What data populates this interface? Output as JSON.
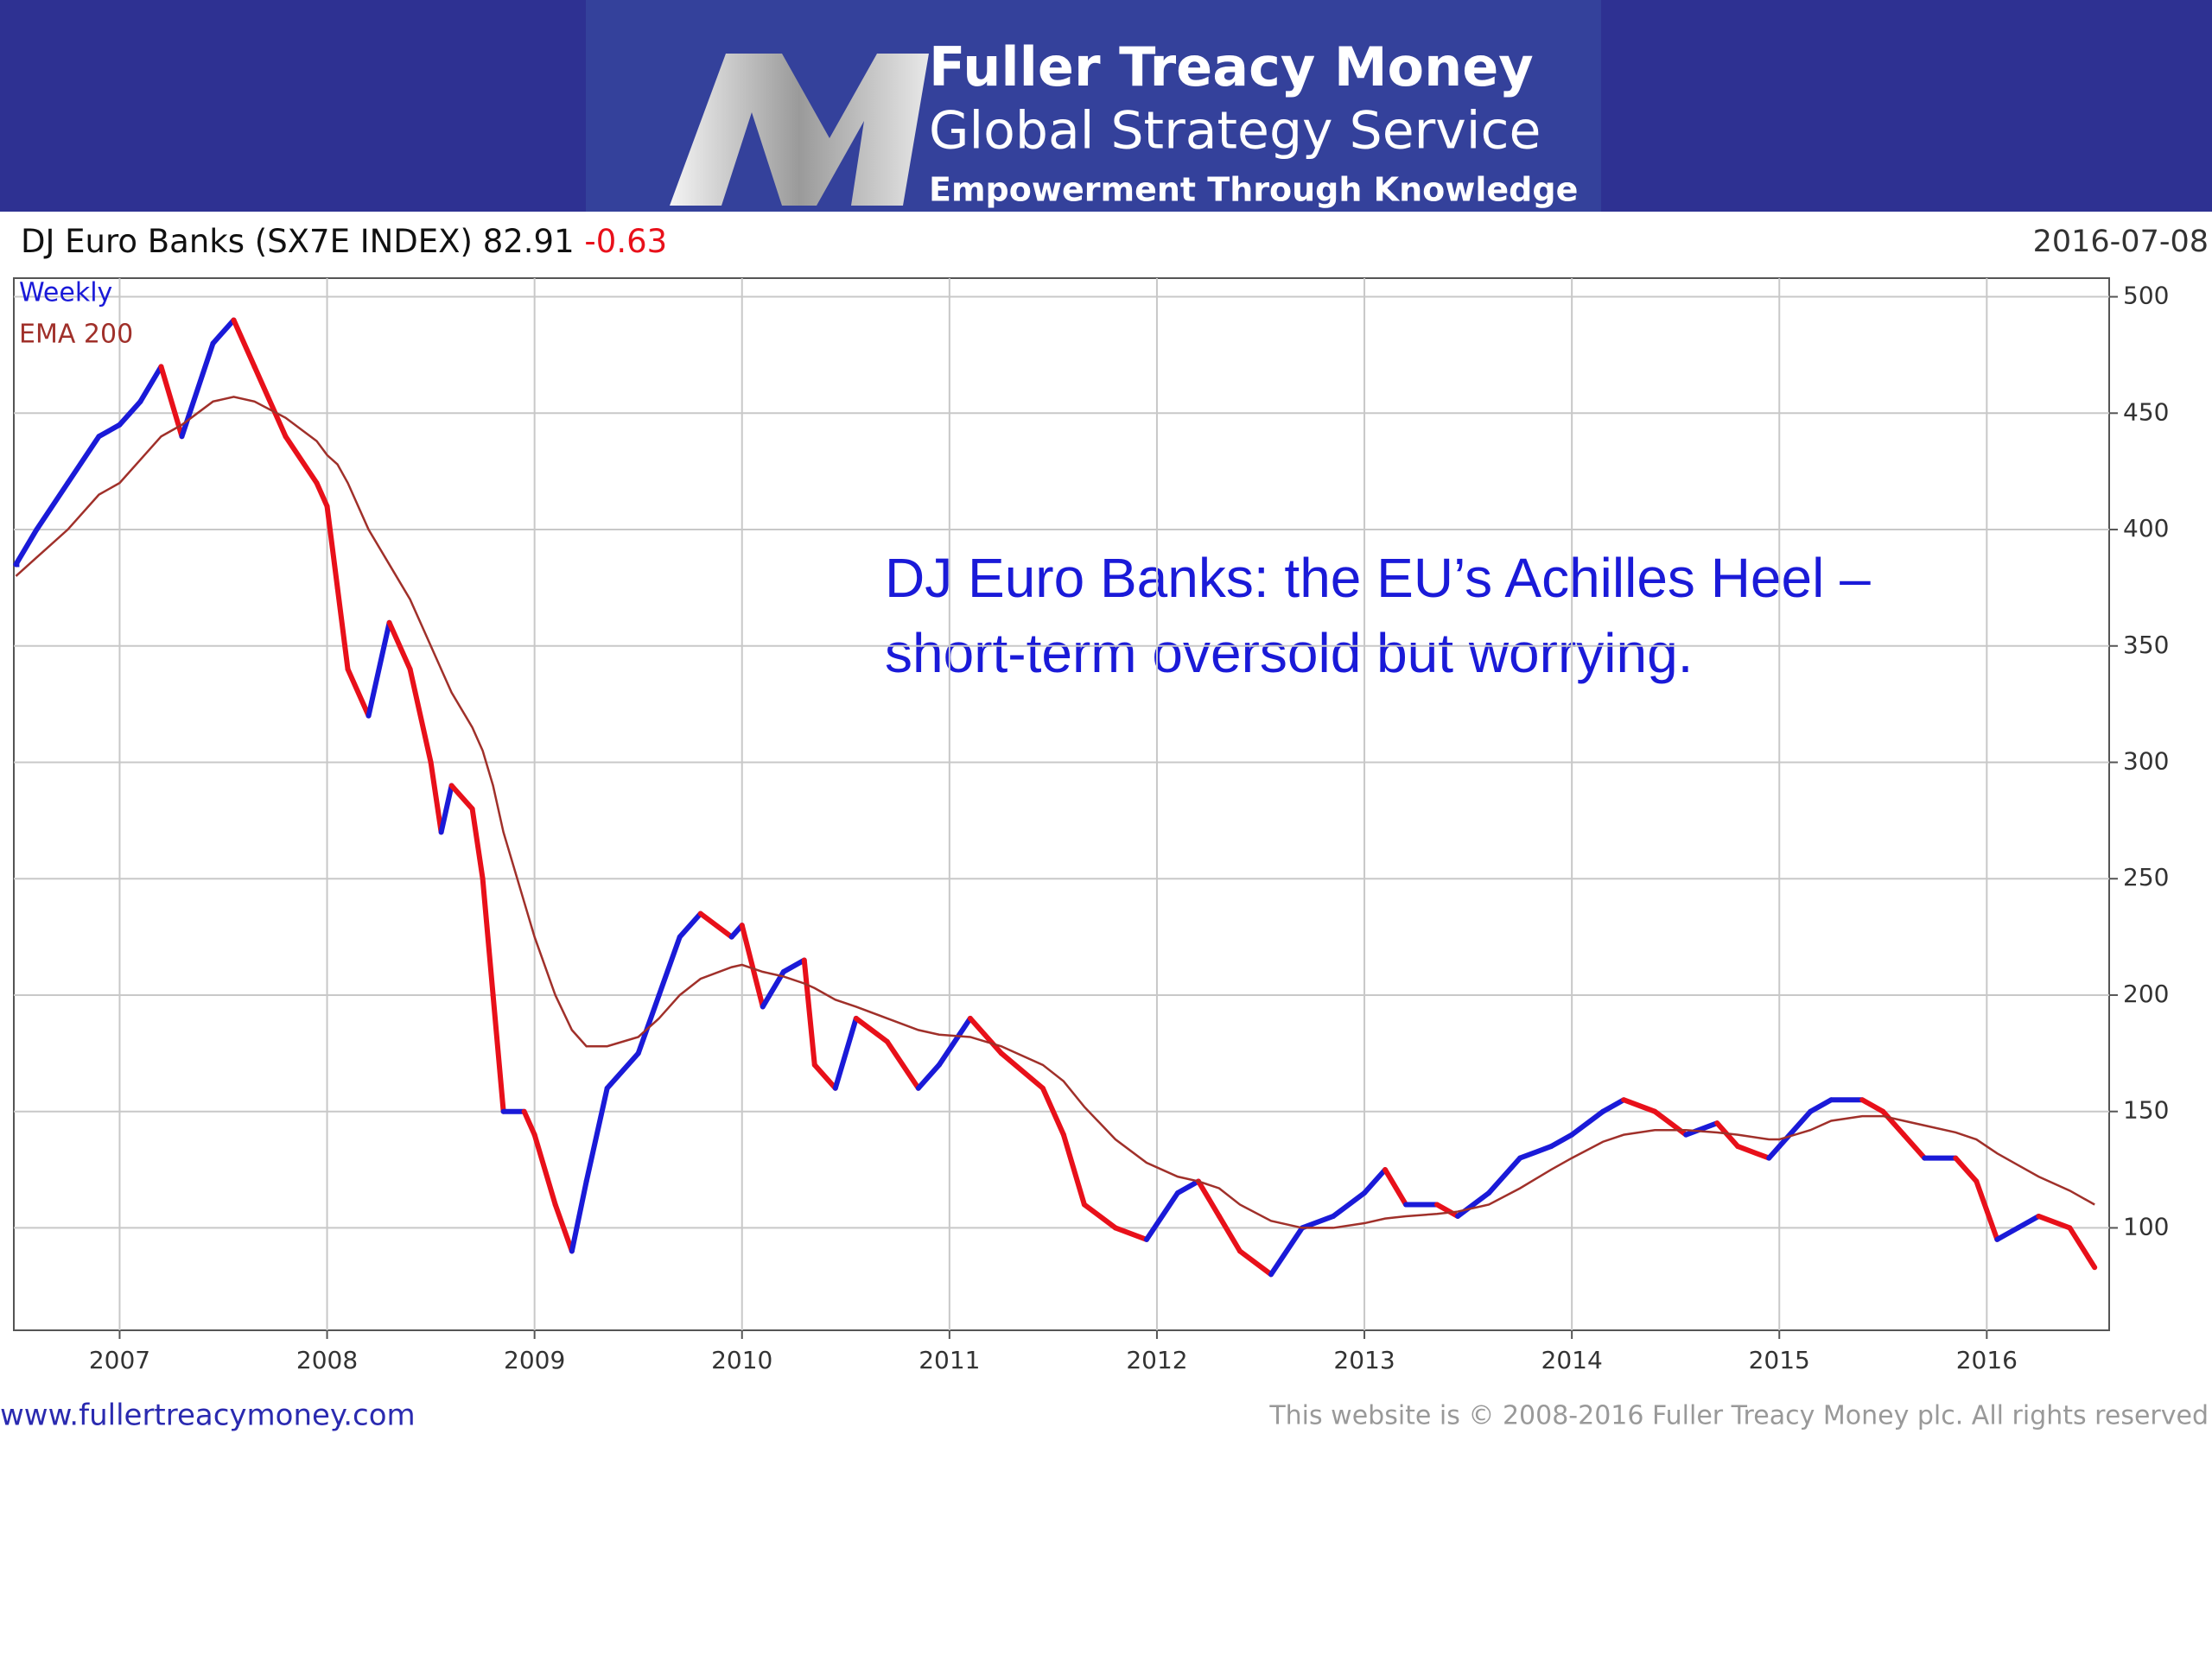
{
  "banner": {
    "title": "Fuller Treacy Money",
    "subtitle": "Global Strategy Service",
    "tagline": "Empowerment Through Knowledge"
  },
  "footer": {
    "url": "www.fullertreacymoney.com",
    "copyright": "This website is © 2008-2016 Fuller Treacy Money plc. All rights reserved"
  },
  "chart_data": {
    "type": "line",
    "title": "DJ Euro Banks (SX7E INDEX)",
    "last": 82.91,
    "change": -0.63,
    "date": "2016-07-08",
    "annotation": [
      "DJ Euro Banks: the EU’s Achilles Heel –",
      "short-term oversold but worrying."
    ],
    "x": [
      2006.5,
      2006.6,
      2006.75,
      2006.9,
      2007.0,
      2007.1,
      2007.2,
      2007.3,
      2007.45,
      2007.55,
      2007.65,
      2007.8,
      2007.95,
      2008.0,
      2008.05,
      2008.1,
      2008.2,
      2008.3,
      2008.4,
      2008.5,
      2008.55,
      2008.6,
      2008.7,
      2008.75,
      2008.8,
      2008.85,
      2008.95,
      2009.0,
      2009.1,
      2009.18,
      2009.25,
      2009.35,
      2009.5,
      2009.6,
      2009.7,
      2009.8,
      2009.95,
      2010.0,
      2010.1,
      2010.2,
      2010.3,
      2010.35,
      2010.45,
      2010.55,
      2010.7,
      2010.85,
      2010.95,
      2011.1,
      2011.25,
      2011.45,
      2011.55,
      2011.65,
      2011.8,
      2011.95,
      2012.1,
      2012.2,
      2012.3,
      2012.4,
      2012.55,
      2012.7,
      2012.85,
      2013.0,
      2013.1,
      2013.2,
      2013.35,
      2013.45,
      2013.6,
      2013.75,
      2013.9,
      2014.0,
      2014.15,
      2014.25,
      2014.4,
      2014.55,
      2014.7,
      2014.8,
      2014.95,
      2015.0,
      2015.15,
      2015.25,
      2015.4,
      2015.5,
      2015.6,
      2015.7,
      2015.85,
      2015.95,
      2016.05,
      2016.15,
      2016.25,
      2016.4,
      2016.52
    ],
    "series": [
      {
        "name": "Weekly",
        "color": "#1a1ad8",
        "down_color": "#e8101a",
        "values": [
          385,
          400,
          420,
          440,
          445,
          455,
          470,
          440,
          480,
          490,
          470,
          440,
          420,
          410,
          375,
          340,
          320,
          360,
          340,
          300,
          270,
          290,
          280,
          250,
          200,
          150,
          150,
          140,
          110,
          90,
          120,
          160,
          175,
          200,
          225,
          235,
          225,
          230,
          195,
          210,
          215,
          170,
          160,
          190,
          180,
          160,
          170,
          190,
          175,
          160,
          140,
          110,
          100,
          95,
          115,
          120,
          105,
          90,
          80,
          100,
          105,
          115,
          125,
          110,
          110,
          105,
          115,
          130,
          135,
          140,
          150,
          155,
          150,
          140,
          145,
          135,
          130,
          135,
          150,
          155,
          155,
          150,
          140,
          130,
          130,
          120,
          95,
          100,
          105,
          100,
          83
        ]
      },
      {
        "name": "EMA 200",
        "color": "#a0302a",
        "values": [
          380,
          388,
          400,
          415,
          420,
          430,
          440,
          445,
          455,
          457,
          455,
          448,
          438,
          432,
          428,
          420,
          400,
          385,
          370,
          350,
          340,
          330,
          315,
          305,
          290,
          270,
          240,
          225,
          200,
          185,
          178,
          178,
          182,
          190,
          200,
          207,
          212,
          213,
          210,
          208,
          205,
          203,
          198,
          195,
          190,
          185,
          183,
          182,
          178,
          170,
          163,
          152,
          138,
          128,
          122,
          120,
          117,
          110,
          103,
          100,
          100,
          102,
          104,
          105,
          106,
          107,
          110,
          117,
          125,
          130,
          137,
          140,
          142,
          142,
          141,
          140,
          138,
          138,
          142,
          146,
          148,
          148,
          146,
          144,
          141,
          138,
          132,
          127,
          122,
          116,
          110
        ]
      }
    ],
    "xlim": [
      2006.49,
      2016.59
    ],
    "xticks": [
      2007,
      2008,
      2009,
      2010,
      2011,
      2012,
      2013,
      2014,
      2015,
      2016
    ],
    "ylim": [
      56,
      508
    ],
    "yticks": [
      100,
      150,
      200,
      250,
      300,
      350,
      400,
      450,
      500
    ],
    "grid": true
  }
}
